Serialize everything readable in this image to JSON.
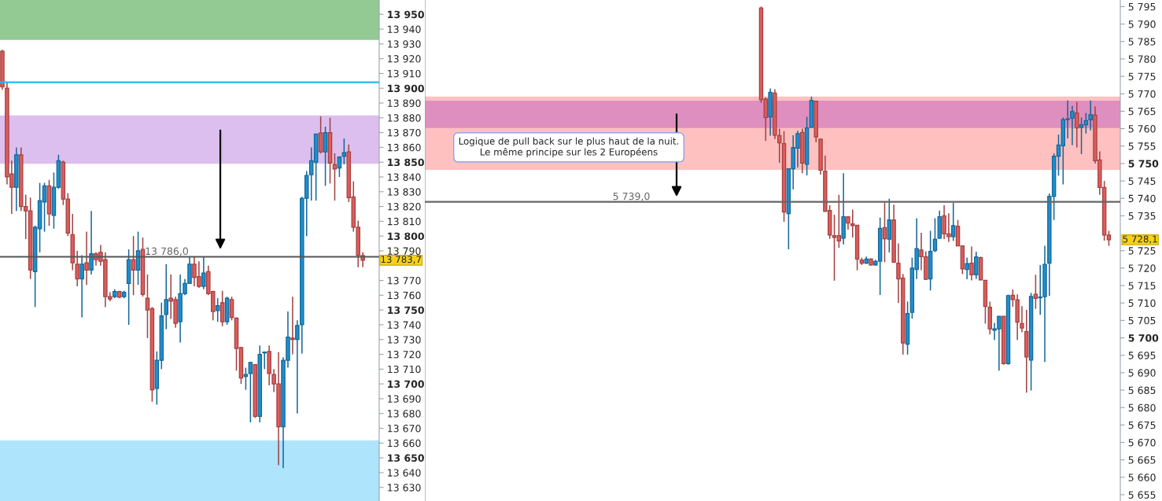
{
  "chart_data": [
    {
      "type": "candlestick",
      "tick_labels": "y",
      "categories": [
        null,
        null,
        null,
        null,
        null,
        null,
        null,
        null,
        null,
        null,
        null,
        null,
        null,
        null,
        null,
        null,
        null,
        null,
        null,
        null,
        null,
        null,
        null,
        null,
        null,
        null,
        null,
        null,
        null,
        null,
        null,
        null,
        null,
        null,
        null,
        null,
        null,
        null,
        null,
        null,
        null,
        null,
        null,
        null,
        null,
        null,
        null,
        null,
        null,
        null,
        null,
        null,
        null,
        null,
        null,
        null,
        null,
        null,
        null,
        null,
        null,
        null,
        null,
        null,
        null,
        null,
        null,
        null,
        null,
        null,
        null,
        null,
        null,
        null,
        null,
        null,
        null,
        null,
        null,
        null,
        null
      ],
      "ylim": [
        13620.8,
        13959.7
      ],
      "yticks": [
        {
          "value": 13630,
          "label": "13 630"
        },
        {
          "value": 13640,
          "label": "13 640"
        },
        {
          "value": 13650,
          "label": "13 650"
        },
        {
          "value": 13660,
          "label": "13 660"
        },
        {
          "value": 13670,
          "label": "13 670"
        },
        {
          "value": 13680,
          "label": "13 680"
        },
        {
          "value": 13690,
          "label": "13 690"
        },
        {
          "value": 13700,
          "label": "13 700"
        },
        {
          "value": 13710,
          "label": "13 710"
        },
        {
          "value": 13720,
          "label": "13 720"
        },
        {
          "value": 13730,
          "label": "13 730"
        },
        {
          "value": 13740,
          "label": "13 740"
        },
        {
          "value": 13750,
          "label": "13 750"
        },
        {
          "value": 13760,
          "label": "13 760"
        },
        {
          "value": 13770,
          "label": "13 770"
        },
        {
          "value": 13790,
          "label": "13 790"
        },
        {
          "value": 13800,
          "label": "13 800"
        },
        {
          "value": 13810,
          "label": "13 810"
        },
        {
          "value": 13820,
          "label": "13 820"
        },
        {
          "value": 13830,
          "label": "13 830"
        },
        {
          "value": 13840,
          "label": "13 840"
        },
        {
          "value": 13850,
          "label": "13 850"
        },
        {
          "value": 13860,
          "label": "13 860"
        },
        {
          "value": 13870,
          "label": "13 870"
        },
        {
          "value": 13880,
          "label": "13 880"
        },
        {
          "value": 13890,
          "label": "13 890"
        },
        {
          "value": 13900,
          "label": "13 900"
        },
        {
          "value": 13910,
          "label": "13 910"
        },
        {
          "value": 13920,
          "label": "13 920"
        },
        {
          "value": 13930,
          "label": "13 930"
        },
        {
          "value": 13940,
          "label": "13 940"
        },
        {
          "value": 13950,
          "label": "13 950"
        }
      ],
      "ohlc": [
        [
          13925,
          13926,
          13899,
          13901
        ],
        [
          13900,
          13904,
          13835,
          13840
        ],
        [
          13842,
          13851,
          13815,
          13833
        ],
        [
          13833,
          13860,
          13817,
          13855
        ],
        [
          13855,
          13860,
          13817,
          13820
        ],
        [
          13820,
          13828,
          13798,
          13817
        ],
        [
          13817,
          13826,
          13771,
          13777
        ],
        [
          13776,
          13807,
          13752,
          13806
        ],
        [
          13805,
          13836,
          13789,
          13824
        ],
        [
          13823,
          13836,
          13803,
          13834
        ],
        [
          13834,
          13838,
          13807,
          13815
        ],
        [
          13814,
          13843,
          13805,
          13833
        ],
        [
          13833,
          13855,
          13832,
          13851
        ],
        [
          13850,
          13851,
          13821,
          13825
        ],
        [
          13825,
          13829,
          13800,
          13802
        ],
        [
          13801,
          13815,
          13777,
          13782
        ],
        [
          13781,
          13790,
          13766,
          13771
        ],
        [
          13771,
          13787,
          13745,
          13781
        ],
        [
          13782,
          13803,
          13767,
          13777
        ],
        [
          13777,
          13817,
          13774,
          13788
        ],
        [
          13788,
          13789,
          13780,
          13784
        ],
        [
          13789,
          13794,
          13780,
          13783
        ],
        [
          13784,
          13789,
          13752,
          13759
        ],
        [
          13759,
          13762,
          13756,
          13757.5
        ],
        [
          13759,
          13764,
          13758,
          13762.5
        ],
        [
          13762.5,
          13763,
          13758,
          13758.6
        ],
        [
          13759,
          13763,
          13758,
          13762
        ],
        [
          13768,
          13791,
          13740,
          13784
        ],
        [
          13784,
          13800,
          13760,
          13777
        ],
        [
          13777,
          13803,
          13767,
          13790
        ],
        [
          13791,
          13799,
          13759,
          13760.5
        ],
        [
          13758,
          13774,
          13731,
          13750
        ],
        [
          13751,
          13752,
          13688,
          13696
        ],
        [
          13697,
          13722,
          13686,
          13716
        ],
        [
          13716,
          13755,
          13710,
          13746
        ],
        [
          13747,
          13781,
          13737,
          13757
        ],
        [
          13758,
          13774,
          13744,
          13756
        ],
        [
          13757,
          13759,
          13738,
          13741
        ],
        [
          13742,
          13774,
          13728,
          13761
        ],
        [
          13761,
          13771,
          13760,
          13768
        ],
        [
          13768,
          13786,
          13768,
          13781
        ],
        [
          13781,
          13786,
          13766,
          13772
        ],
        [
          13772.6,
          13783,
          13765,
          13766
        ],
        [
          13766,
          13786,
          13764,
          13775
        ],
        [
          13776,
          13780,
          13760,
          13761
        ],
        [
          13762.5,
          13763,
          13743,
          13749
        ],
        [
          13749.6,
          13758,
          13742,
          13753
        ],
        [
          13755,
          13763,
          13739,
          13742
        ],
        [
          13742,
          13759,
          13740,
          13758
        ],
        [
          13757,
          13759,
          13743,
          13745
        ],
        [
          13744.5,
          13745,
          13709,
          13724
        ],
        [
          13724.6,
          13725,
          13700,
          13704
        ],
        [
          13705,
          13711,
          13696,
          13706.4
        ],
        [
          13707,
          13715,
          13674,
          13714.5
        ],
        [
          13713,
          13713.5,
          13677,
          13678
        ],
        [
          13678,
          13726,
          13674,
          13720
        ],
        [
          13721,
          13722,
          13710,
          13721.5
        ],
        [
          13722,
          13726,
          13699,
          13707
        ],
        [
          13706.4,
          13710,
          13694.5,
          13700
        ],
        [
          13700,
          13721.5,
          13645,
          13671
        ],
        [
          13671,
          13718,
          13643,
          13716
        ],
        [
          13716,
          13749,
          13711,
          13731.6
        ],
        [
          13731,
          13759,
          13720,
          13730
        ],
        [
          13730,
          13743,
          13680,
          13739.5
        ],
        [
          13740,
          13826.5,
          13720.6,
          13825.5
        ],
        [
          13825.5,
          13844,
          13800,
          13841
        ],
        [
          13841.5,
          13860,
          13824,
          13851
        ],
        [
          13850,
          13869,
          13824,
          13869
        ],
        [
          13869.7,
          13881,
          13856,
          13857
        ],
        [
          13857,
          13874,
          13834,
          13870
        ],
        [
          13870,
          13880,
          13835.6,
          13849.4
        ],
        [
          13848.5,
          13856,
          13824,
          13845.4
        ],
        [
          13846,
          13854,
          13840,
          13853.5
        ],
        [
          13854,
          13866,
          13848.5,
          13856.4
        ],
        [
          13857,
          13862,
          13823,
          13826
        ],
        [
          13826.5,
          13837,
          13803,
          13806
        ],
        [
          13806,
          13810.5,
          13779,
          13787
        ],
        [
          13786.8,
          13789,
          13779,
          13783.7
        ],
        null,
        null,
        null
      ],
      "colors": [
        "#e05c5c",
        "#e05c5c",
        "#e05c5c",
        "#1e8fcf",
        "#e05c5c",
        "#e05c5c",
        "#e05c5c",
        "#1e8fcf",
        "#1e8fcf",
        "#1e8fcf",
        "#e05c5c",
        "#1e8fcf",
        "#1e8fcf",
        "#e05c5c",
        "#e05c5c",
        "#e05c5c",
        "#e05c5c",
        "#1e8fcf",
        "#e05c5c",
        "#1e8fcf",
        "#e05c5c",
        "#e05c5c",
        "#e05c5c",
        "#e05c5c",
        "#1e8fcf",
        "#e05c5c",
        "#1e8fcf",
        "#1e8fcf",
        "#e05c5c",
        "#1e8fcf",
        "#e05c5c",
        "#e05c5c",
        "#e05c5c",
        "#1e8fcf",
        "#1e8fcf",
        "#1e8fcf",
        "#e05c5c",
        "#e05c5c",
        "#1e8fcf",
        "#1e8fcf",
        "#1e8fcf",
        "#e05c5c",
        "#e05c5c",
        "#1e8fcf",
        "#e05c5c",
        "#e05c5c",
        "#1e8fcf",
        "#e05c5c",
        "#1e8fcf",
        "#e05c5c",
        "#e05c5c",
        "#e05c5c",
        "#1e8fcf",
        "#1e8fcf",
        "#e05c5c",
        "#1e8fcf",
        "#1e8fcf",
        "#e05c5c",
        "#e05c5c",
        "#e05c5c",
        "#1e8fcf",
        "#1e8fcf",
        "#e05c5c",
        "#1e8fcf",
        "#1e8fcf",
        "#1e8fcf",
        "#1e8fcf",
        "#1e8fcf",
        "#e05c5c",
        "#1e8fcf",
        "#e05c5c",
        "#e05c5c",
        "#1e8fcf",
        "#1e8fcf",
        "#e05c5c",
        "#e05c5c",
        "#e05c5c",
        "#e05c5c",
        null,
        null,
        null
      ],
      "bands": [
        {
          "axis": "y",
          "from": 13932.7,
          "to": 13959.7,
          "color": "#93c993"
        },
        {
          "axis": "y",
          "from": 13620.8,
          "to": 13661.8,
          "color": "#aee4fc"
        },
        {
          "axis": "y",
          "from": 13848.9,
          "to": 13881.6,
          "color": "#dcbfee"
        }
      ],
      "ref_lines": [
        {
          "axis": "y",
          "value": 13904,
          "color": "#29b6f6"
        },
        {
          "axis": "y",
          "value": 13786,
          "label": "13 786,0",
          "color": "#555555"
        }
      ],
      "annotations": [
        "13 783,7"
      ]
    },
    {
      "type": "candlestick",
      "tick_labels": "y",
      "categories": [
        null,
        null,
        null,
        null,
        null,
        null,
        null,
        null,
        null,
        null,
        null,
        null,
        null,
        null,
        null,
        null,
        null,
        null,
        null,
        null,
        null,
        null,
        null,
        null,
        null,
        null,
        null,
        null,
        null,
        null,
        null,
        null,
        null,
        null,
        null,
        null,
        null,
        null,
        null,
        null,
        null,
        null,
        null,
        null,
        null,
        null,
        null,
        null,
        null,
        null,
        null,
        null,
        null,
        null,
        null,
        null,
        null,
        null,
        null,
        null,
        null,
        null,
        null,
        null,
        null,
        null,
        null,
        null,
        null,
        null,
        null,
        null,
        null,
        null,
        null,
        null,
        null,
        null,
        null,
        null,
        null,
        null,
        null,
        null,
        null,
        null,
        null,
        null,
        null,
        null,
        null,
        null,
        null,
        null,
        null,
        null,
        null,
        null,
        null,
        null,
        null,
        null,
        null,
        null,
        null,
        null,
        null,
        null,
        null,
        null,
        null,
        null,
        null,
        null,
        null,
        null,
        null,
        null,
        null,
        null,
        null,
        null,
        null,
        null,
        null,
        null,
        null,
        null,
        null,
        null,
        null,
        null,
        null,
        null,
        null,
        null,
        null,
        null,
        null,
        null,
        null,
        null,
        null,
        null,
        null,
        null,
        null,
        null,
        null,
        null,
        null,
        null
      ],
      "ylim": [
        5653.2,
        5796.9
      ],
      "yticks": [
        {
          "value": 5655,
          "label": "5 655"
        },
        {
          "value": 5660,
          "label": "5 660"
        },
        {
          "value": 5665,
          "label": "5 665"
        },
        {
          "value": 5670,
          "label": "5 670"
        },
        {
          "value": 5675,
          "label": "5 675"
        },
        {
          "value": 5680,
          "label": "5 680"
        },
        {
          "value": 5685,
          "label": "5 685"
        },
        {
          "value": 5690,
          "label": "5 690"
        },
        {
          "value": 5695,
          "label": "5 695"
        },
        {
          "value": 5700,
          "label": "5 700"
        },
        {
          "value": 5705,
          "label": "5 705"
        },
        {
          "value": 5710,
          "label": "5 710"
        },
        {
          "value": 5715,
          "label": "5 715"
        },
        {
          "value": 5720,
          "label": "5 720"
        },
        {
          "value": 5725,
          "label": "5 725"
        },
        {
          "value": 5735,
          "label": "5 735"
        },
        {
          "value": 5740,
          "label": "5 740"
        },
        {
          "value": 5745,
          "label": "5 745"
        },
        {
          "value": 5750,
          "label": "5 750"
        },
        {
          "value": 5755,
          "label": "5 755"
        },
        {
          "value": 5760,
          "label": "5 760"
        },
        {
          "value": 5765,
          "label": "5 765"
        },
        {
          "value": 5770,
          "label": "5 770"
        },
        {
          "value": 5775,
          "label": "5 775"
        },
        {
          "value": 5780,
          "label": "5 780"
        },
        {
          "value": 5785,
          "label": "5 785"
        },
        {
          "value": 5790,
          "label": "5 790"
        },
        {
          "value": 5795,
          "label": "5 795"
        }
      ],
      "ohlc": [
        null,
        null,
        null,
        null,
        null,
        null,
        null,
        null,
        null,
        null,
        null,
        null,
        null,
        null,
        null,
        null,
        null,
        null,
        null,
        null,
        null,
        null,
        null,
        null,
        null,
        null,
        null,
        null,
        null,
        null,
        null,
        null,
        null,
        null,
        null,
        null,
        null,
        null,
        null,
        null,
        null,
        null,
        null,
        null,
        null,
        null,
        null,
        null,
        null,
        null,
        null,
        null,
        null,
        null,
        null,
        null,
        null,
        null,
        null,
        null,
        null,
        null,
        null,
        null,
        null,
        null,
        null,
        null,
        null,
        null,
        null,
        null,
        null,
        [
          5794.6,
          5795,
          5767.4,
          5768.3
        ],
        [
          5768.5,
          5769,
          5756.5,
          5763.2
        ],
        [
          5763.4,
          5771.5,
          5758,
          5770.4
        ],
        [
          5770.2,
          5771.3,
          5757,
          5758.1
        ],
        [
          5758,
          5760,
          5750.2,
          5755.9
        ],
        [
          5755.7,
          5759.3,
          5733.3,
          5736.1
        ],
        [
          5735.6,
          5748.5,
          5725.4,
          5748.5
        ],
        [
          5748.5,
          5758.1,
          5742.6,
          5754.6
        ],
        [
          5754.4,
          5759.4,
          5748.9,
          5758.6
        ],
        [
          5758.9,
          5760,
          5747.2,
          5750.1
        ],
        [
          5749.8,
          5763.4,
          5746.6,
          5760.2
        ],
        [
          5760.4,
          5769.2,
          5760.4,
          5768.1
        ],
        [
          5767.9,
          5768,
          5756.1,
          5757.6
        ],
        [
          5757,
          5757,
          5746.8,
          5748.1
        ],
        [
          5747.8,
          5752.3,
          5736.1,
          5736.3
        ],
        [
          5736.5,
          5738,
          5728.4,
          5729.5
        ],
        [
          5729.3,
          5735.3,
          5716.4,
          5728.8
        ],
        [
          5729.3,
          5741,
          5725.8,
          5727.8
        ],
        [
          5728.6,
          5747.2,
          5726.8,
          5734.7
        ],
        [
          5734.7,
          5734.7,
          5731,
          5732.9
        ],
        [
          5732.7,
          5736.8,
          5728.8,
          5732.2
        ],
        [
          5732.3,
          5732.3,
          5719.4,
          5722.6
        ],
        [
          5722.3,
          5723,
          5720.9,
          5721.4
        ],
        [
          5721.4,
          5723.3,
          5721.2,
          5722.6
        ],
        [
          5722.6,
          5722.8,
          5720.7,
          5720.9
        ],
        [
          5720.9,
          5722.4,
          5720.7,
          5721.9
        ],
        [
          5722,
          5734.5,
          5712.3,
          5731.4
        ],
        [
          5731.6,
          5738.8,
          5721.7,
          5728.4
        ],
        [
          5728.3,
          5739.9,
          5724.5,
          5733.8
        ],
        [
          5733.8,
          5738.2,
          5721.5,
          5721.7
        ],
        [
          5721.4,
          5727.1,
          5710,
          5716.9
        ],
        [
          5717.1,
          5718.3,
          5695.2,
          5698.5
        ],
        [
          5698.2,
          5710.4,
          5695.2,
          5707
        ],
        [
          5707.3,
          5723,
          5705.5,
          5720
        ],
        [
          5719.6,
          5734.3,
          5716.9,
          5725.6
        ],
        [
          5725.2,
          5730.1,
          5719.4,
          5723.3
        ],
        [
          5723.3,
          5724.8,
          5716.6,
          5716.8
        ],
        [
          5716.9,
          5730.7,
          5713.6,
          5724.8
        ],
        [
          5725,
          5734.3,
          5724.6,
          5728.3
        ],
        [
          5728.6,
          5736.5,
          5728.4,
          5734.7
        ],
        [
          5735,
          5738,
          5728.3,
          5729.8
        ],
        [
          5729.8,
          5735.7,
          5727.5,
          5729
        ],
        [
          5729,
          5738.7,
          5727.8,
          5732.2
        ],
        [
          5732,
          5733.8,
          5726.3,
          5726.4
        ],
        [
          5726.4,
          5726.5,
          5718.3,
          5719.8
        ],
        [
          5719.6,
          5723,
          5716.8,
          5721.3
        ],
        [
          5721.4,
          5726.2,
          5716.5,
          5718.1
        ],
        [
          5718.1,
          5724.7,
          5716.9,
          5723.2
        ],
        [
          5723,
          5723.3,
          5716.5,
          5716.6
        ],
        [
          5716.5,
          5716.5,
          5704.1,
          5709
        ],
        [
          5708.8,
          5710.4,
          5701,
          5702.6
        ],
        [
          5702.2,
          5704.3,
          5699.4,
          5702.6
        ],
        [
          5702.6,
          5706.2,
          5690.6,
          5706.2
        ],
        [
          5706.2,
          5706.2,
          5692.3,
          5692.6
        ],
        [
          5692.6,
          5712.4,
          5692.3,
          5712.1
        ],
        [
          5712.2,
          5713.9,
          5708.9,
          5711
        ],
        [
          5710.9,
          5712.5,
          5699.4,
          5704.5
        ],
        [
          5704.1,
          5709.1,
          5701.6,
          5702.8
        ],
        [
          5701.8,
          5708,
          5684.3,
          5694.5
        ],
        [
          5693.6,
          5712.9,
          5684.9,
          5711.9
        ],
        [
          5712.5,
          5718.1,
          5708.3,
          5711.3
        ],
        [
          5711.5,
          5720.9,
          5706.6,
          5711.7
        ],
        [
          5711.8,
          5726.4,
          5693.1,
          5721.1
        ],
        [
          5721.4,
          5741.4,
          5712,
          5740.6
        ],
        [
          5740.6,
          5752.9,
          5733.8,
          5752.1
        ],
        [
          5752.1,
          5758.3,
          5746.5,
          5755.3
        ],
        [
          5755.1,
          5763.2,
          5744,
          5762.6
        ],
        [
          5762.6,
          5768.1,
          5757.2,
          5762.8
        ],
        [
          5763,
          5766.5,
          5755.3,
          5764.9
        ],
        [
          5764.5,
          5767.7,
          5754.6,
          5760.2
        ],
        [
          5760.4,
          5763.2,
          5752.7,
          5761.1
        ],
        [
          5761.1,
          5764.5,
          5758.6,
          5762.3
        ],
        [
          5762.5,
          5768.1,
          5759.5,
          5764
        ],
        [
          5763.9,
          5766.4,
          5750,
          5750.8
        ],
        [
          5751,
          5753.5,
          5741,
          5743.1
        ],
        [
          5743.1,
          5745,
          5727.9,
          5729.5
        ],
        [
          5729.5,
          5730.7,
          5726.4,
          5728.1
        ],
        null,
        null
      ],
      "colors": [
        null,
        null,
        null,
        null,
        null,
        null,
        null,
        null,
        null,
        null,
        null,
        null,
        null,
        null,
        null,
        null,
        null,
        null,
        null,
        null,
        null,
        null,
        null,
        null,
        null,
        null,
        null,
        null,
        null,
        null,
        null,
        null,
        null,
        null,
        null,
        null,
        null,
        null,
        null,
        null,
        null,
        null,
        null,
        null,
        null,
        null,
        null,
        null,
        null,
        null,
        null,
        null,
        null,
        null,
        null,
        null,
        null,
        null,
        null,
        null,
        null,
        null,
        null,
        null,
        null,
        null,
        null,
        null,
        null,
        null,
        null,
        null,
        null,
        "#e05c5c",
        "#e05c5c",
        "#1e8fcf",
        "#e05c5c",
        "#e05c5c",
        "#e05c5c",
        "#1e8fcf",
        "#1e8fcf",
        "#1e8fcf",
        "#e05c5c",
        "#1e8fcf",
        "#1e8fcf",
        "#e05c5c",
        "#e05c5c",
        "#e05c5c",
        "#e05c5c",
        "#e05c5c",
        "#e05c5c",
        "#1e8fcf",
        "#e05c5c",
        "#e05c5c",
        "#e05c5c",
        "#e05c5c",
        "#1e8fcf",
        "#e05c5c",
        "#1e8fcf",
        "#1e8fcf",
        "#e05c5c",
        "#1e8fcf",
        "#e05c5c",
        "#e05c5c",
        "#e05c5c",
        "#1e8fcf",
        "#1e8fcf",
        "#1e8fcf",
        "#e05c5c",
        "#e05c5c",
        "#1e8fcf",
        "#1e8fcf",
        "#1e8fcf",
        "#e05c5c",
        "#e05c5c",
        "#1e8fcf",
        "#e05c5c",
        "#e05c5c",
        "#1e8fcf",
        "#e05c5c",
        "#1e8fcf",
        "#e05c5c",
        "#e05c5c",
        "#e05c5c",
        "#1e8fcf",
        "#1e8fcf",
        "#e05c5c",
        "#1e8fcf",
        "#e05c5c",
        "#e05c5c",
        "#e05c5c",
        "#e05c5c",
        "#1e8fcf",
        "#e05c5c",
        "#1e8fcf",
        "#1e8fcf",
        "#1e8fcf",
        "#1e8fcf",
        "#1e8fcf",
        "#1e8fcf",
        "#1e8fcf",
        "#1e8fcf",
        "#e05c5c",
        "#1e8fcf",
        "#1e8fcf",
        "#1e8fcf",
        "#e05c5c",
        "#e05c5c",
        "#e05c5c",
        "#e05c5c",
        null,
        null
      ],
      "bands": [
        {
          "axis": "y",
          "from": 5748.2,
          "to": 5769.2,
          "color": "#ffc0c0"
        },
        {
          "axis": "y",
          "from": 5760.2,
          "to": 5768,
          "color": "#df8fbf"
        }
      ],
      "ref_lines": [
        {
          "axis": "y",
          "value": 5739,
          "label": "5 739,0",
          "color": "#666666"
        }
      ],
      "annotations": [
        "Logique de pull back sur le plus haut de la nuit.\nLe même principe sur les 2 Européens",
        "5 728,1"
      ]
    }
  ]
}
